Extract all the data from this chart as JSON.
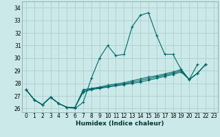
{
  "xlabel": "Humidex (Indice chaleur)",
  "bg_color": "#cce9e9",
  "grid_color": "#b0cccc",
  "line_color": "#006666",
  "xlim": [
    -0.5,
    23.5
  ],
  "ylim": [
    25.7,
    34.5
  ],
  "xticks": [
    0,
    1,
    2,
    3,
    4,
    5,
    6,
    7,
    8,
    9,
    10,
    11,
    12,
    13,
    14,
    15,
    16,
    17,
    18,
    19,
    20,
    21,
    22,
    23
  ],
  "yticks": [
    26,
    27,
    28,
    29,
    30,
    31,
    32,
    33,
    34
  ],
  "series": [
    [
      27.5,
      26.7,
      26.3,
      26.9,
      26.4,
      26.1,
      26.0,
      26.5,
      28.4,
      30.0,
      31.0,
      30.2,
      30.3,
      32.5,
      33.4,
      33.6,
      31.8,
      30.3,
      30.3,
      29.1,
      28.3,
      29.5,
      null,
      null
    ],
    [
      27.5,
      26.7,
      26.3,
      26.9,
      26.4,
      26.1,
      26.1,
      27.5,
      27.6,
      27.7,
      27.85,
      27.95,
      28.05,
      28.2,
      28.35,
      28.5,
      28.6,
      28.75,
      28.9,
      29.1,
      28.3,
      28.8,
      29.5,
      null
    ],
    [
      27.5,
      26.7,
      26.3,
      26.9,
      26.4,
      26.1,
      26.1,
      27.4,
      27.55,
      27.65,
      27.75,
      27.85,
      27.95,
      28.1,
      28.22,
      28.38,
      28.5,
      28.65,
      28.8,
      29.0,
      28.3,
      28.8,
      29.5,
      null
    ],
    [
      27.5,
      26.7,
      26.3,
      26.9,
      26.4,
      26.1,
      26.1,
      27.3,
      27.5,
      27.6,
      27.7,
      27.8,
      27.9,
      28.0,
      28.1,
      28.25,
      28.4,
      28.55,
      28.7,
      28.9,
      28.3,
      28.8,
      29.5,
      null
    ]
  ]
}
